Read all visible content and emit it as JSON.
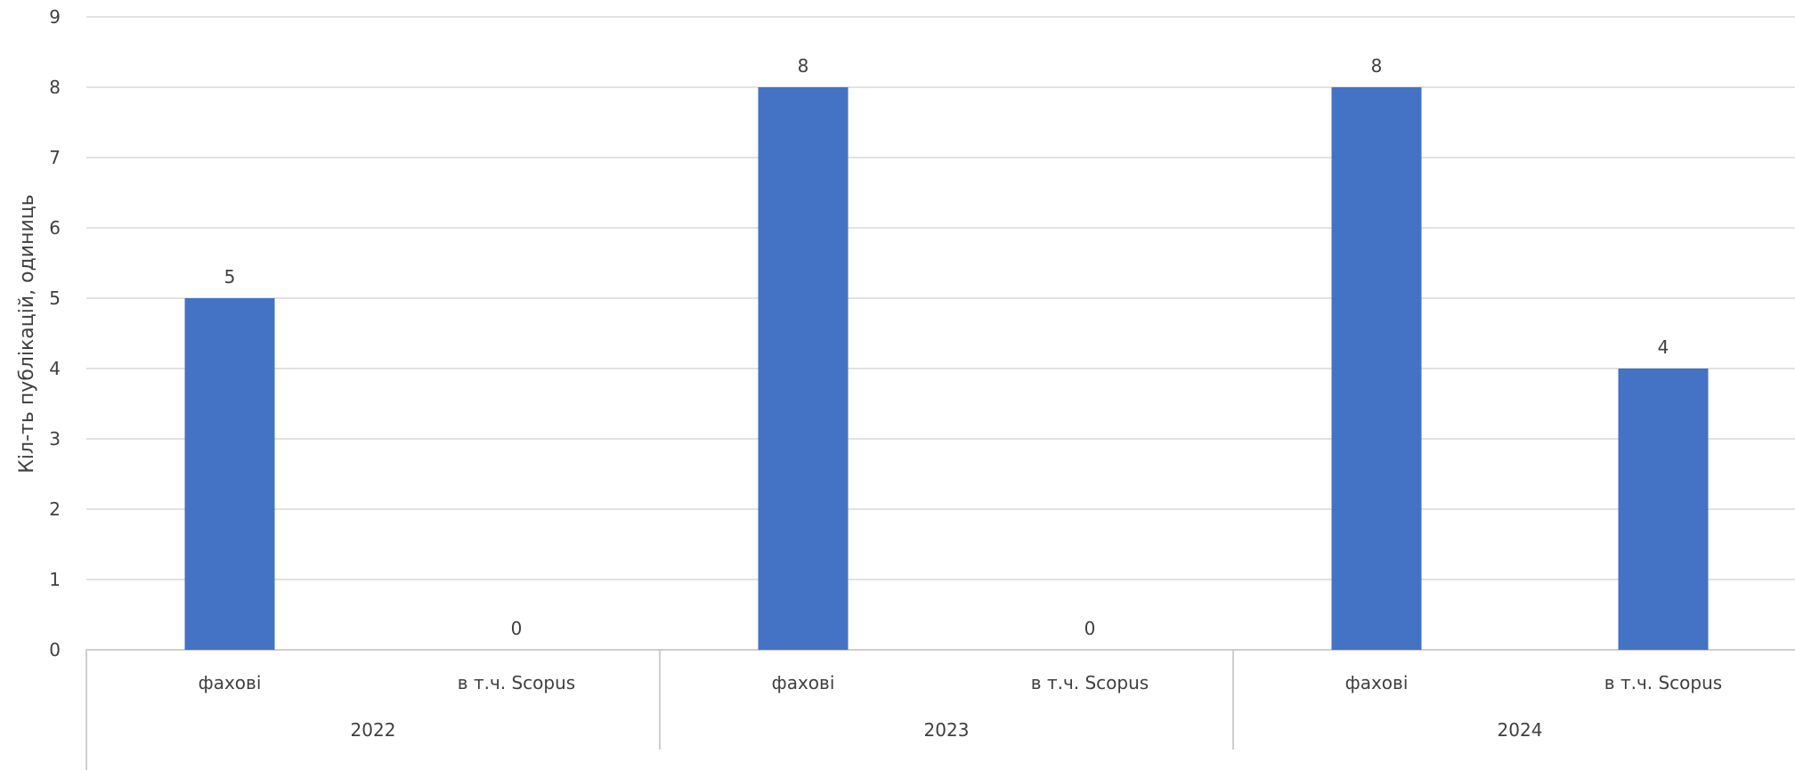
{
  "chart_data": {
    "type": "bar",
    "ylabel": "Кіл-ть публікацій, одиниць",
    "xlabel": "",
    "ylim": [
      0,
      9
    ],
    "yticks": [
      0,
      1,
      2,
      3,
      4,
      5,
      6,
      7,
      8,
      9
    ],
    "grid": true,
    "bar_color": "#4472C4",
    "groups": [
      {
        "label": "2022",
        "categories": [
          {
            "label": "фахові",
            "value": 5
          },
          {
            "label": "в т.ч. Scopus",
            "value": 0
          }
        ]
      },
      {
        "label": "2023",
        "categories": [
          {
            "label": "фахові",
            "value": 8
          },
          {
            "label": "в т.ч. Scopus",
            "value": 0
          }
        ]
      },
      {
        "label": "2024",
        "categories": [
          {
            "label": "фахові",
            "value": 8
          },
          {
            "label": "в т.ч. Scopus",
            "value": 4
          }
        ]
      }
    ]
  }
}
